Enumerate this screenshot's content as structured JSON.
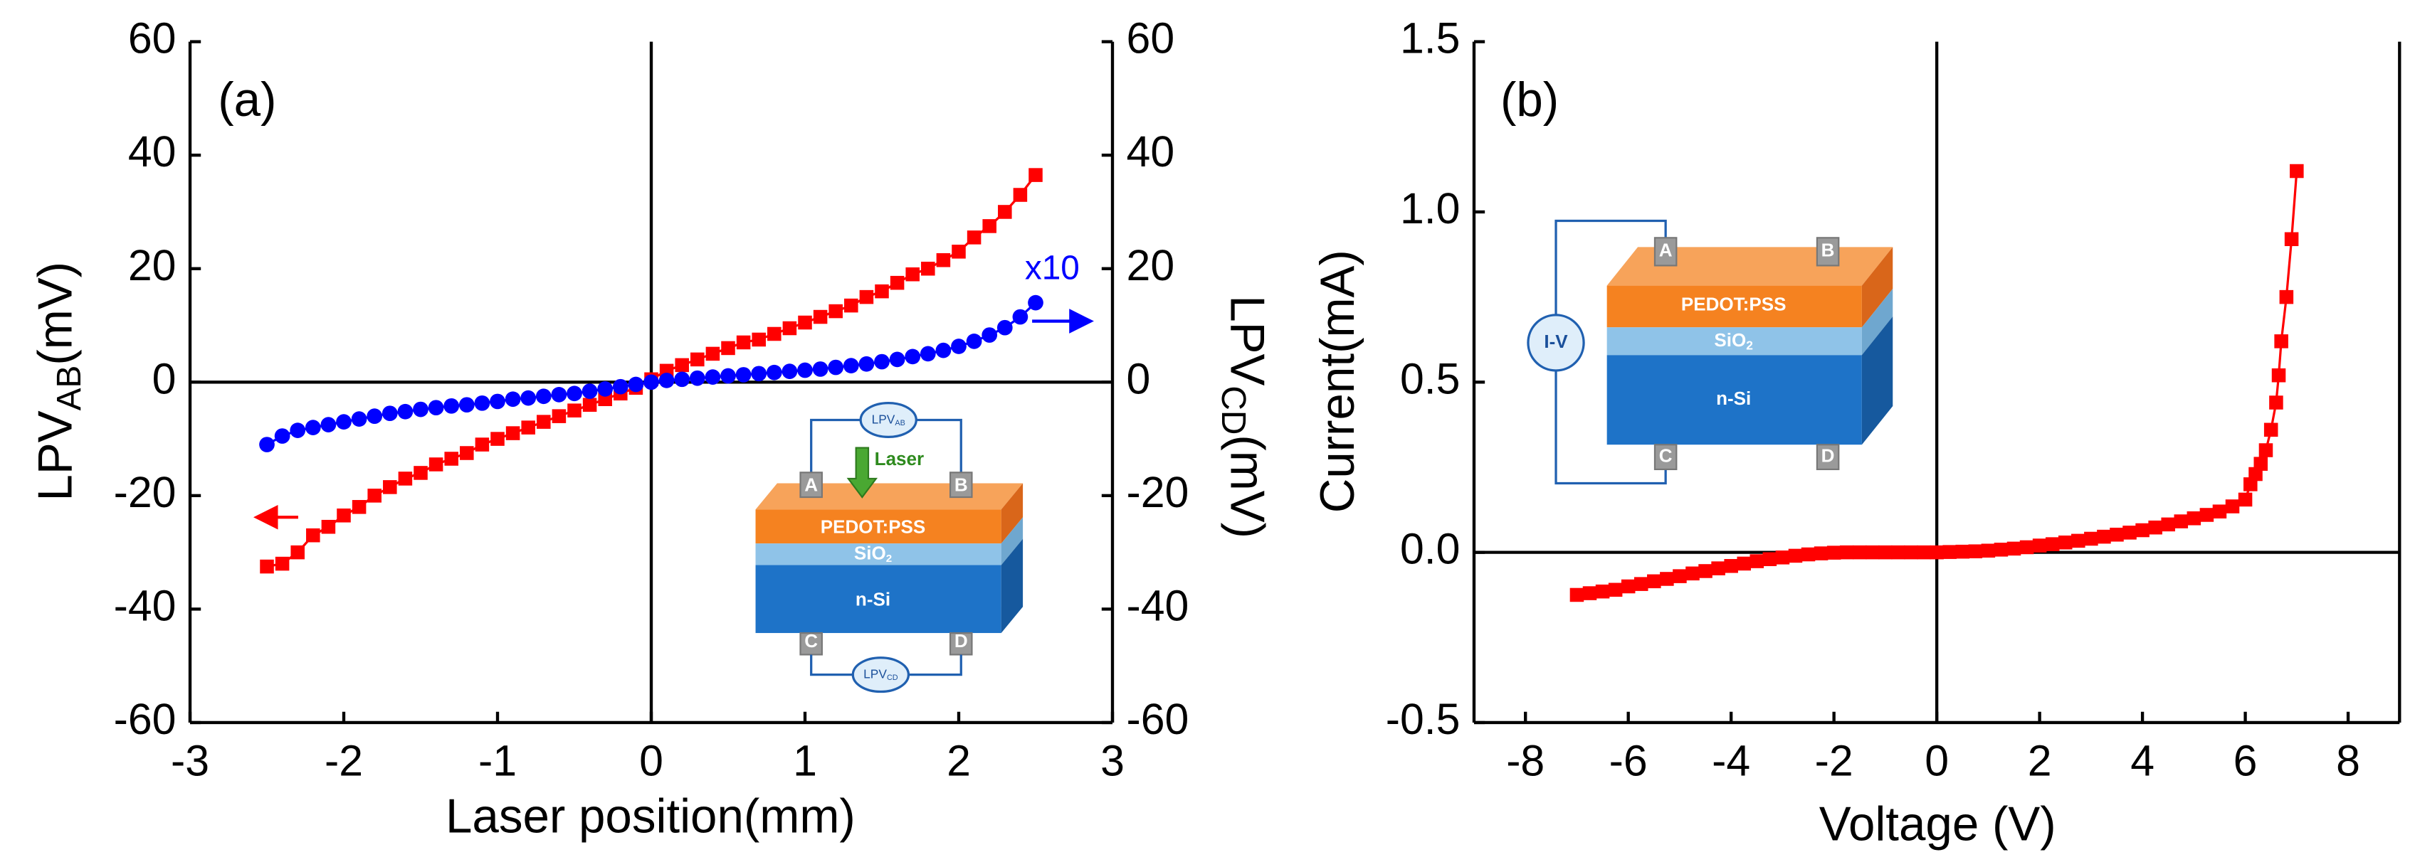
{
  "chart_data": [
    {
      "type": "line",
      "panel_label": "(a)",
      "xlabel": "Laser position(mm)",
      "ylabel": {
        "text": "LPV",
        "sub": "AB",
        "unit": "(mV)"
      },
      "y2label": {
        "text": "LPV",
        "sub": "CD",
        "unit": "(mV)"
      },
      "annotation": "x10",
      "xlim": [
        -3,
        3
      ],
      "xticks": [
        -3,
        -2,
        -1,
        0,
        1,
        2,
        3
      ],
      "ylim": [
        -60,
        60
      ],
      "yticks": [
        -60,
        -40,
        -20,
        0,
        20,
        40,
        60
      ],
      "y2lim": [
        -60,
        60
      ],
      "y2ticks": [
        -60,
        -40,
        -20,
        0,
        20,
        40,
        60
      ],
      "x": [
        -2.5,
        -2.4,
        -2.3,
        -2.2,
        -2.1,
        -2.0,
        -1.9,
        -1.8,
        -1.7,
        -1.6,
        -1.5,
        -1.4,
        -1.3,
        -1.2,
        -1.1,
        -1.0,
        -0.9,
        -0.8,
        -0.7,
        -0.6,
        -0.5,
        -0.4,
        -0.3,
        -0.2,
        -0.1,
        0,
        0.1,
        0.2,
        0.3,
        0.4,
        0.5,
        0.6,
        0.7,
        0.8,
        0.9,
        1.0,
        1.1,
        1.2,
        1.3,
        1.4,
        1.5,
        1.6,
        1.7,
        1.8,
        1.9,
        2.0,
        2.1,
        2.2,
        2.3,
        2.4,
        2.5
      ],
      "series": [
        {
          "color": "#ff0000",
          "marker": "square",
          "values": [
            -32.5,
            -32,
            -30,
            -27,
            -25.5,
            -23.5,
            -22,
            -20,
            -18.5,
            -17,
            -16,
            -14.5,
            -13.5,
            -12.5,
            -11,
            -10,
            -9,
            -8,
            -7,
            -6,
            -5,
            -4,
            -3,
            -2,
            -1,
            0.5,
            2,
            3,
            4,
            5,
            6,
            7,
            7.5,
            8.5,
            9.5,
            10.5,
            11.5,
            12.5,
            13.5,
            15,
            16,
            17.5,
            19,
            20,
            21.5,
            23,
            25.5,
            27.5,
            30,
            33,
            36.5
          ]
        },
        {
          "color": "#0000ff",
          "marker": "circle",
          "axis": "y2",
          "values": [
            -11,
            -9.5,
            -8.5,
            -8,
            -7.5,
            -7,
            -6.5,
            -6,
            -5.5,
            -5.2,
            -4.8,
            -4.5,
            -4.2,
            -4,
            -3.7,
            -3.4,
            -3,
            -2.8,
            -2.5,
            -2.2,
            -2,
            -1.6,
            -1.2,
            -0.8,
            -0.4,
            0,
            0.3,
            0.5,
            0.7,
            0.9,
            1.1,
            1.3,
            1.5,
            1.7,
            1.9,
            2.1,
            2.3,
            2.6,
            2.9,
            3.2,
            3.6,
            4,
            4.5,
            5,
            5.6,
            6.3,
            7.2,
            8.3,
            9.6,
            11.5,
            14
          ]
        }
      ],
      "inset": {
        "meter_top": {
          "text": "LPV",
          "sub": "AB"
        },
        "meter_bottom": {
          "text": "LPV",
          "sub": "CD"
        },
        "laser": "Laser",
        "layers": [
          {
            "text": "PEDOT:PSS"
          },
          {
            "text": "SiO",
            "sub": "2"
          },
          {
            "text": "n-Si"
          }
        ],
        "contacts": [
          "A",
          "B",
          "C",
          "D"
        ]
      }
    },
    {
      "type": "line",
      "panel_label": "(b)",
      "xlabel": "Voltage (V)",
      "ylabel": "Current(mA)",
      "xlim": [
        -9,
        9
      ],
      "xticks": [
        -8,
        -6,
        -4,
        -2,
        0,
        2,
        4,
        6,
        8
      ],
      "ylim": [
        -0.5,
        1.5
      ],
      "yticks": [
        -0.5,
        {
          "value": 0,
          "label": "0.0"
        },
        0.5,
        {
          "value": 1,
          "label": "1.0"
        },
        1.5
      ],
      "x": [
        -7,
        -6.75,
        -6.5,
        -6.25,
        -6,
        -5.75,
        -5.5,
        -5.25,
        -5,
        -4.75,
        -4.5,
        -4.25,
        -4,
        -3.75,
        -3.5,
        -3.25,
        -3,
        -2.75,
        -2.5,
        -2.25,
        -2,
        -1.75,
        -1.5,
        -1.25,
        -1,
        -0.75,
        -0.5,
        -0.25,
        0,
        0.25,
        0.5,
        0.75,
        1,
        1.25,
        1.5,
        1.75,
        2,
        2.25,
        2.5,
        2.75,
        3,
        3.25,
        3.5,
        3.75,
        4,
        4.25,
        4.5,
        4.75,
        5,
        5.25,
        5.5,
        5.75,
        6,
        6.1,
        6.2,
        6.3,
        6.4,
        6.5,
        6.6,
        6.65,
        6.7,
        6.8,
        6.9,
        7.0
      ],
      "series": [
        {
          "color": "#ff0000",
          "marker": "square",
          "values": [
            -0.125,
            -0.12,
            -0.115,
            -0.11,
            -0.1,
            -0.093,
            -0.085,
            -0.078,
            -0.07,
            -0.062,
            -0.055,
            -0.047,
            -0.04,
            -0.033,
            -0.026,
            -0.02,
            -0.015,
            -0.01,
            -0.006,
            -0.003,
            -0.001,
            0,
            0,
            0,
            0,
            0,
            0,
            0,
            0,
            0.001,
            0.002,
            0.003,
            0.005,
            0.008,
            0.011,
            0.015,
            0.02,
            0.024,
            0.029,
            0.034,
            0.04,
            0.046,
            0.052,
            0.058,
            0.065,
            0.073,
            0.082,
            0.091,
            0.1,
            0.11,
            0.12,
            0.135,
            0.155,
            0.2,
            0.23,
            0.26,
            0.3,
            0.36,
            0.44,
            0.52,
            0.62,
            0.75,
            0.92,
            1.12
          ]
        }
      ],
      "inset": {
        "meter": "I-V",
        "layers": [
          {
            "text": "PEDOT:PSS"
          },
          {
            "text": "SiO",
            "sub": "2"
          },
          {
            "text": "n-Si"
          }
        ],
        "contacts": [
          "A",
          "B",
          "C",
          "D"
        ]
      }
    }
  ]
}
